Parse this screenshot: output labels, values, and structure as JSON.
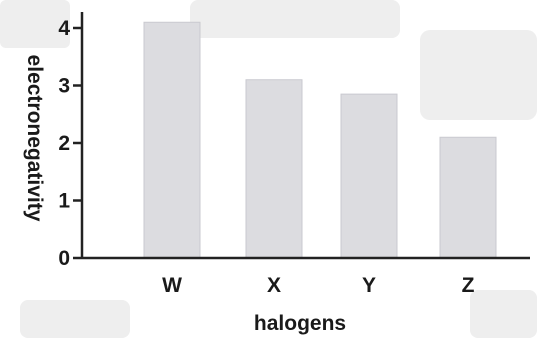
{
  "chart_data": {
    "type": "bar",
    "categories": [
      "W",
      "X",
      "Y",
      "Z"
    ],
    "values": [
      4.1,
      3.1,
      2.85,
      2.1
    ],
    "xlabel": "halogens",
    "ylabel": "electronegativity",
    "yticks": [
      "0",
      "1",
      "2",
      "3",
      "4"
    ],
    "ylim": [
      0,
      4.3
    ],
    "grid": false,
    "bar_color": "#dcdce0"
  }
}
